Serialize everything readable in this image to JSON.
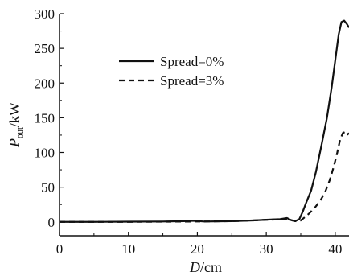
{
  "chart_data": {
    "type": "line",
    "title": "",
    "xlabel": {
      "symbol": "D",
      "unit": "/cm"
    },
    "ylabel": {
      "symbol": "P",
      "subscript": "out",
      "unit": "/kW"
    },
    "xlim": [
      0,
      42
    ],
    "ylim": [
      -20,
      300
    ],
    "x_ticks": [
      0,
      10,
      20,
      30,
      40
    ],
    "y_ticks": [
      0,
      50,
      100,
      150,
      200,
      250,
      300
    ],
    "grid": false,
    "legend_position": "upper-left",
    "series": [
      {
        "name": "Spread=0%",
        "style": "solid",
        "color": "#111111",
        "points": [
          [
            0,
            0
          ],
          [
            5,
            0
          ],
          [
            10,
            0.3
          ],
          [
            15,
            0.5
          ],
          [
            18,
            1
          ],
          [
            19.5,
            1.5
          ],
          [
            21,
            0.5
          ],
          [
            25,
            1
          ],
          [
            28,
            2
          ],
          [
            30,
            3
          ],
          [
            32,
            4
          ],
          [
            33,
            5.5
          ],
          [
            33.6,
            2.5
          ],
          [
            34.2,
            1
          ],
          [
            34.8,
            4
          ],
          [
            35.3,
            15
          ],
          [
            35.8,
            28
          ],
          [
            36.5,
            45
          ],
          [
            37.2,
            72
          ],
          [
            38,
            110
          ],
          [
            38.8,
            150
          ],
          [
            39.5,
            195
          ],
          [
            40.1,
            240
          ],
          [
            40.5,
            270
          ],
          [
            40.9,
            288
          ],
          [
            41.3,
            290
          ],
          [
            41.7,
            285
          ],
          [
            42,
            280
          ]
        ]
      },
      {
        "name": "Spread=3%",
        "style": "dashed",
        "color": "#111111",
        "points": [
          [
            0,
            0
          ],
          [
            10,
            0
          ],
          [
            20,
            0.5
          ],
          [
            25,
            1
          ],
          [
            28,
            2
          ],
          [
            30,
            3
          ],
          [
            32,
            3.5
          ],
          [
            33,
            4.5
          ],
          [
            33.8,
            2
          ],
          [
            34.5,
            0.5
          ],
          [
            35,
            2
          ],
          [
            35.5,
            6
          ],
          [
            36.2,
            12
          ],
          [
            37,
            20
          ],
          [
            37.8,
            30
          ],
          [
            38.5,
            42
          ],
          [
            39.2,
            60
          ],
          [
            39.8,
            80
          ],
          [
            40.3,
            100
          ],
          [
            40.7,
            118
          ],
          [
            41.1,
            128
          ],
          [
            41.5,
            130
          ],
          [
            41.8,
            126
          ],
          [
            42,
            128
          ]
        ]
      }
    ]
  }
}
